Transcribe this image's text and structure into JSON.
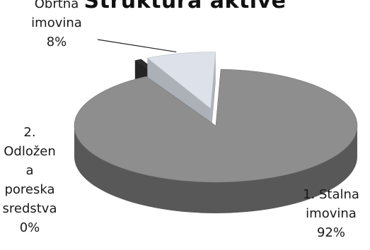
{
  "chart_data": {
    "type": "pie",
    "title": "Struktura aktive",
    "slices": [
      {
        "name": "1. Stalna imovina",
        "label_lines": [
          "1. Stalna",
          "imovina",
          "92%"
        ],
        "value": 92,
        "color": "#8e8e8e",
        "exploded": false
      },
      {
        "name": "2. Odložena poreska sredstva",
        "label_lines": [
          "2.",
          "Odložen",
          "a",
          "poreska",
          "sredstva",
          "0%"
        ],
        "value": 0,
        "color": "#2f2f2f",
        "exploded": true
      },
      {
        "name": "Obrtna imovina",
        "label_lines": [
          "Obrtna",
          "imovina",
          "8%"
        ],
        "value": 8,
        "color": "#dde2ea",
        "exploded": true
      }
    ],
    "grid": false,
    "legend": "none",
    "style": "3d-exploded"
  }
}
